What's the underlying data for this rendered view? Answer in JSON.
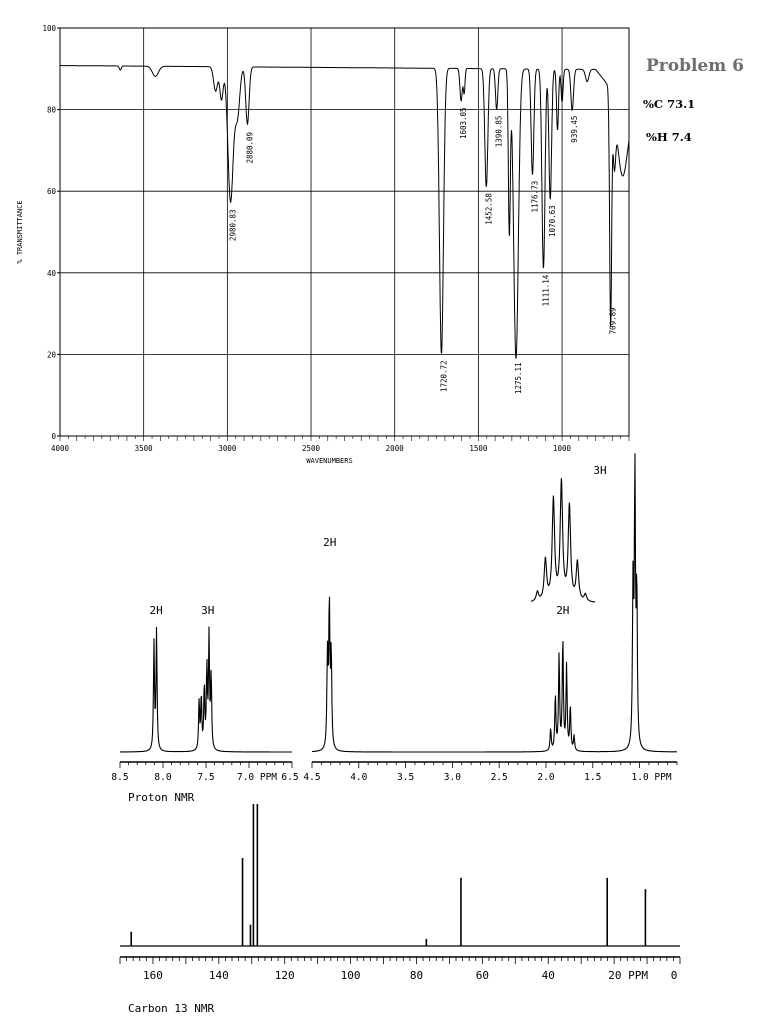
{
  "header": {
    "problem_title": "Problem 6",
    "carbon_percent": "%C 73.1",
    "hydrogen_percent": "%H 7.4"
  },
  "chart_data": [
    {
      "type": "line",
      "name": "IR spectrum",
      "xlabel": "WAVENUMBERS",
      "ylabel": "% TRANSMITTANCE",
      "xlim": [
        4000,
        600
      ],
      "ylim": [
        0,
        100
      ],
      "x_ticks": [
        4000,
        3500,
        3000,
        2500,
        2000,
        1500,
        1000
      ],
      "y_ticks": [
        0,
        20,
        40,
        60,
        80,
        100
      ],
      "grid": true,
      "peaks": [
        {
          "x": 2980.83,
          "y": 57,
          "label": "2980.83"
        },
        {
          "x": 2880.09,
          "y": 76,
          "label": "2880.09"
        },
        {
          "x": 1720.72,
          "y": 20,
          "label": "1720.72"
        },
        {
          "x": 1603.05,
          "y": 82,
          "label": "1603.05"
        },
        {
          "x": 1452.58,
          "y": 61,
          "label": "1452.58"
        },
        {
          "x": 1390.85,
          "y": 80,
          "label": "1390.85"
        },
        {
          "x": 1275.11,
          "y": 19.5,
          "label": "1275.11"
        },
        {
          "x": 1176.73,
          "y": 64,
          "label": "1176.73"
        },
        {
          "x": 1111.14,
          "y": 41,
          "label": "1111.14"
        },
        {
          "x": 1070.63,
          "y": 58,
          "label": "1070.63"
        },
        {
          "x": 939.45,
          "y": 80,
          "label": "939.45"
        },
        {
          "x": 709.89,
          "y": 33,
          "label": "709.89"
        }
      ]
    },
    {
      "type": "line",
      "name": "Proton NMR",
      "xlabel": "Proton NMR",
      "unit": "PPM",
      "panels": [
        {
          "xlim": [
            8.5,
            6.5
          ],
          "x_ticks": [
            "8.5",
            "8.0",
            "7.5",
            "7.0 PPM",
            "6.5"
          ]
        },
        {
          "xlim": [
            4.5,
            0.6
          ],
          "x_ticks": [
            "4.5",
            "4.0",
            "3.5",
            "3.0",
            "2.5",
            "2.0",
            "1.5",
            "1.0 PPM"
          ]
        }
      ],
      "signals": [
        {
          "shift": 8.08,
          "integration": "2H",
          "multiplicity": "d",
          "height": 0.65
        },
        {
          "shift": 7.48,
          "integration": "3H",
          "multiplicity": "m",
          "height": 0.65
        },
        {
          "shift": 4.31,
          "integration": "2H",
          "multiplicity": "t",
          "height": 1.0
        },
        {
          "shift": 1.82,
          "integration": "2H",
          "multiplicity": "sextet",
          "height": 0.6
        },
        {
          "shift": 1.05,
          "integration": "3H",
          "multiplicity": "t",
          "height": 1.45
        }
      ],
      "inset": {
        "of_shift": 1.82,
        "multiplicity": "sextet"
      }
    },
    {
      "type": "line",
      "name": "Carbon 13 NMR",
      "xlabel": "Carbon 13 NMR",
      "unit": "PPM",
      "xlim": [
        170,
        0
      ],
      "x_ticks": [
        "160",
        "140",
        "120",
        "100",
        "80",
        "60",
        "40",
        "20 PPM",
        "0"
      ],
      "peaks": [
        {
          "shift": 166.6,
          "height": 0.1
        },
        {
          "shift": 132.8,
          "height": 0.62
        },
        {
          "shift": 130.4,
          "height": 0.15
        },
        {
          "shift": 129.5,
          "height": 1.0
        },
        {
          "shift": 128.3,
          "height": 1.0
        },
        {
          "shift": 77.0,
          "height": 0.05
        },
        {
          "shift": 66.5,
          "height": 0.48
        },
        {
          "shift": 22.1,
          "height": 0.48
        },
        {
          "shift": 10.5,
          "height": 0.4
        }
      ]
    }
  ]
}
